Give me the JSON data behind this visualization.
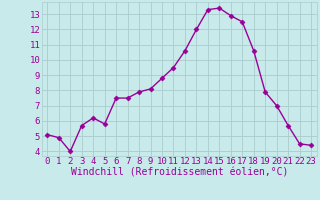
{
  "x": [
    0,
    1,
    2,
    3,
    4,
    5,
    6,
    7,
    8,
    9,
    10,
    11,
    12,
    13,
    14,
    15,
    16,
    17,
    18,
    19,
    20,
    21,
    22,
    23
  ],
  "y": [
    5.1,
    4.9,
    4.0,
    5.7,
    6.2,
    5.8,
    7.5,
    7.5,
    7.9,
    8.1,
    8.8,
    9.5,
    10.6,
    12.0,
    13.3,
    13.4,
    12.9,
    12.5,
    10.6,
    7.9,
    7.0,
    5.7,
    4.5,
    4.4
  ],
  "line_color": "#990099",
  "marker": "D",
  "markersize": 2.5,
  "linewidth": 1,
  "bg_color": "#c8eaea",
  "grid_color": "#aacccc",
  "xlabel": "Windchill (Refroidissement éolien,°C)",
  "xlabel_color": "#990099",
  "tick_color": "#990099",
  "ylabel_ticks": [
    4,
    5,
    6,
    7,
    8,
    9,
    10,
    11,
    12,
    13
  ],
  "xlim": [
    -0.5,
    23.5
  ],
  "ylim": [
    3.7,
    13.8
  ],
  "font_family": "monospace",
  "tick_fontsize": 6.5,
  "xlabel_fontsize": 7
}
